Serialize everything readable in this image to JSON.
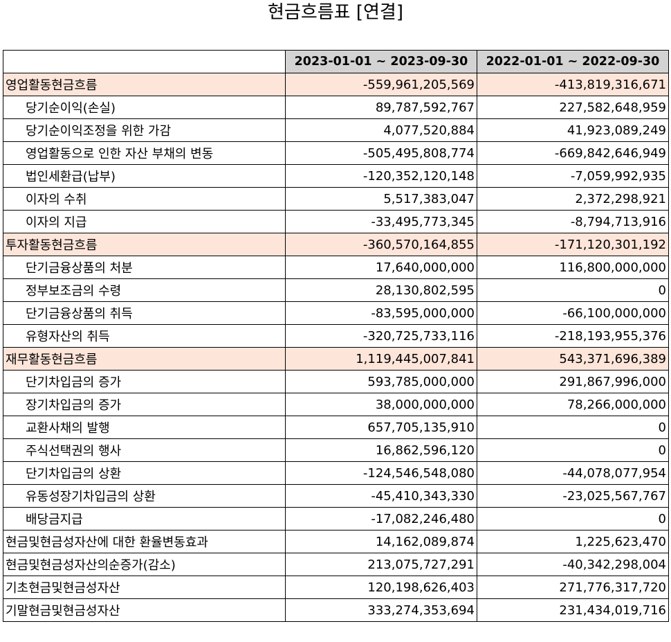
{
  "title": "현금흐름표 [연결]",
  "header": {
    "label": "",
    "period_current": "2023-01-01 ~ 2023-09-30",
    "period_previous": "2022-01-01 ~ 2022-09-30"
  },
  "colors": {
    "header_bg": "#d3d3d3",
    "section_bg": "#fde5da",
    "border": "#000000"
  },
  "rows": [
    {
      "label": "영업활동현금흐름",
      "current": "-559,961,205,569",
      "previous": "-413,819,316,671",
      "type": "section"
    },
    {
      "label": "당기순이익(손실)",
      "current": "89,787,592,767",
      "previous": "227,582,648,959",
      "type": "item"
    },
    {
      "label": "당기순이익조정을 위한 가감",
      "current": "4,077,520,884",
      "previous": "41,923,089,249",
      "type": "item"
    },
    {
      "label": "영업활동으로 인한 자산 부채의 변동",
      "current": "-505,495,808,774",
      "previous": "-669,842,646,949",
      "type": "item"
    },
    {
      "label": "법인세환급(납부)",
      "current": "-120,352,120,148",
      "previous": "-7,059,992,935",
      "type": "item"
    },
    {
      "label": "이자의 수취",
      "current": "5,517,383,047",
      "previous": "2,372,298,921",
      "type": "item"
    },
    {
      "label": "이자의 지급",
      "current": "-33,495,773,345",
      "previous": "-8,794,713,916",
      "type": "item"
    },
    {
      "label": "투자활동현금흐름",
      "current": "-360,570,164,855",
      "previous": "-171,120,301,192",
      "type": "section"
    },
    {
      "label": "단기금융상품의 처분",
      "current": "17,640,000,000",
      "previous": "116,800,000,000",
      "type": "item"
    },
    {
      "label": "정부보조금의 수령",
      "current": "28,130,802,595",
      "previous": "0",
      "type": "item"
    },
    {
      "label": "단기금융상품의 취득",
      "current": "-83,595,000,000",
      "previous": "-66,100,000,000",
      "type": "item"
    },
    {
      "label": "유형자산의 취득",
      "current": "-320,725,733,116",
      "previous": "-218,193,955,376",
      "type": "item"
    },
    {
      "label": "재무활동현금흐름",
      "current": "1,119,445,007,841",
      "previous": "543,371,696,389",
      "type": "section"
    },
    {
      "label": "단기차입금의 증가",
      "current": "593,785,000,000",
      "previous": "291,867,996,000",
      "type": "item"
    },
    {
      "label": "장기차입금의 증가",
      "current": "38,000,000,000",
      "previous": "78,266,000,000",
      "type": "item"
    },
    {
      "label": "교환사채의 발행",
      "current": "657,705,135,910",
      "previous": "0",
      "type": "item"
    },
    {
      "label": "주식선택권의 행사",
      "current": "16,862,596,120",
      "previous": "0",
      "type": "item"
    },
    {
      "label": "단기차입금의 상환",
      "current": "-124,546,548,080",
      "previous": "-44,078,077,954",
      "type": "item"
    },
    {
      "label": "유동성장기차입금의 상환",
      "current": "-45,410,343,330",
      "previous": "-23,025,567,767",
      "type": "item"
    },
    {
      "label": "배당금지급",
      "current": "-17,082,246,480",
      "previous": "0",
      "type": "item"
    },
    {
      "label": "현금및현금성자산에 대한 환율변동효과",
      "current": "14,162,089,874",
      "previous": "1,225,623,470",
      "type": "total"
    },
    {
      "label": "현금및현금성자산의순증가(감소)",
      "current": "213,075,727,291",
      "previous": "-40,342,298,004",
      "type": "total"
    },
    {
      "label": "기초현금및현금성자산",
      "current": "120,198,626,403",
      "previous": "271,776,317,720",
      "type": "total"
    },
    {
      "label": "기말현금및현금성자산",
      "current": "333,274,353,694",
      "previous": "231,434,019,716",
      "type": "total"
    }
  ]
}
